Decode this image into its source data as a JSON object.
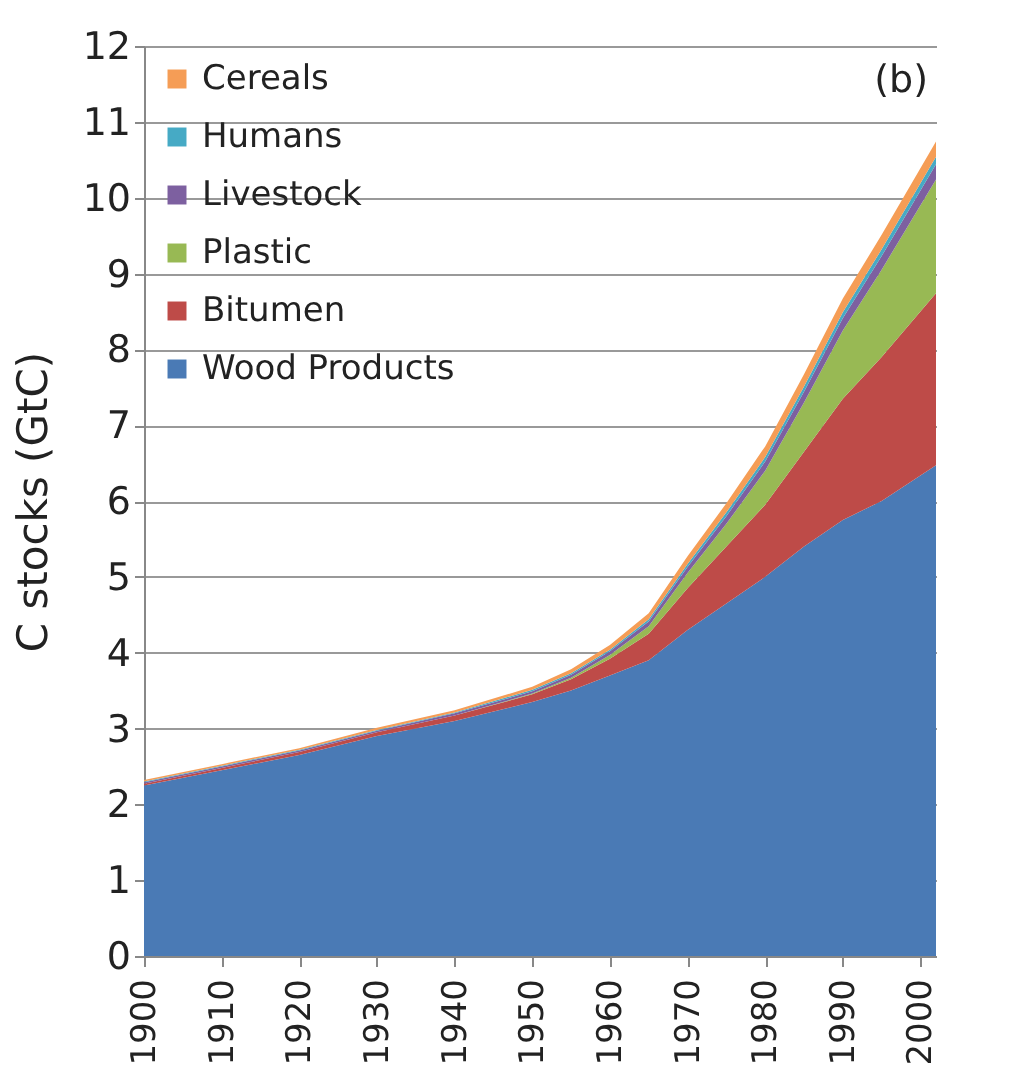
{
  "chart_data": {
    "type": "area",
    "stacked": true,
    "ylabel": "C stocks (GtC)",
    "annotations": [
      "(b)"
    ],
    "x": [
      1900,
      1910,
      1920,
      1930,
      1940,
      1950,
      1955,
      1960,
      1965,
      1970,
      1975,
      1980,
      1985,
      1990,
      1995,
      2002
    ],
    "xlim": [
      1900,
      2002
    ],
    "xticks": [
      1900,
      1910,
      1920,
      1930,
      1940,
      1950,
      1960,
      1970,
      1980,
      1990,
      2000
    ],
    "ylim": [
      0,
      12
    ],
    "yticks": [
      0,
      1,
      2,
      3,
      4,
      5,
      6,
      7,
      8,
      9,
      10,
      11,
      12
    ],
    "grid": "y",
    "legend": "top left",
    "series": [
      {
        "name": "Wood Products",
        "color": "#4a7ab5",
        "values": [
          2.25,
          2.45,
          2.65,
          2.9,
          3.1,
          3.35,
          3.5,
          3.7,
          3.9,
          4.3,
          4.65,
          5.0,
          5.4,
          5.75,
          6.0,
          6.47
        ]
      },
      {
        "name": "Bitumen",
        "color": "#be4b48",
        "values": [
          0.02,
          0.03,
          0.04,
          0.05,
          0.07,
          0.1,
          0.15,
          0.22,
          0.35,
          0.55,
          0.75,
          0.95,
          1.25,
          1.6,
          1.9,
          2.27
        ]
      },
      {
        "name": "Plastic",
        "color": "#98b954",
        "values": [
          0,
          0,
          0,
          0,
          0,
          0.01,
          0.02,
          0.05,
          0.1,
          0.2,
          0.3,
          0.45,
          0.65,
          0.9,
          1.15,
          1.5
        ]
      },
      {
        "name": "Livestock",
        "color": "#7d60a0",
        "values": [
          0.02,
          0.02,
          0.02,
          0.02,
          0.03,
          0.03,
          0.04,
          0.05,
          0.06,
          0.08,
          0.1,
          0.12,
          0.14,
          0.16,
          0.18,
          0.2
        ]
      },
      {
        "name": "Humans",
        "color": "#46aac5",
        "values": [
          0.01,
          0.01,
          0.01,
          0.01,
          0.01,
          0.02,
          0.02,
          0.02,
          0.03,
          0.04,
          0.05,
          0.06,
          0.07,
          0.08,
          0.09,
          0.1
        ]
      },
      {
        "name": "Cereals",
        "color": "#f59d56",
        "values": [
          0.02,
          0.02,
          0.02,
          0.03,
          0.03,
          0.04,
          0.05,
          0.06,
          0.08,
          0.1,
          0.12,
          0.14,
          0.16,
          0.18,
          0.19,
          0.2
        ]
      }
    ]
  }
}
